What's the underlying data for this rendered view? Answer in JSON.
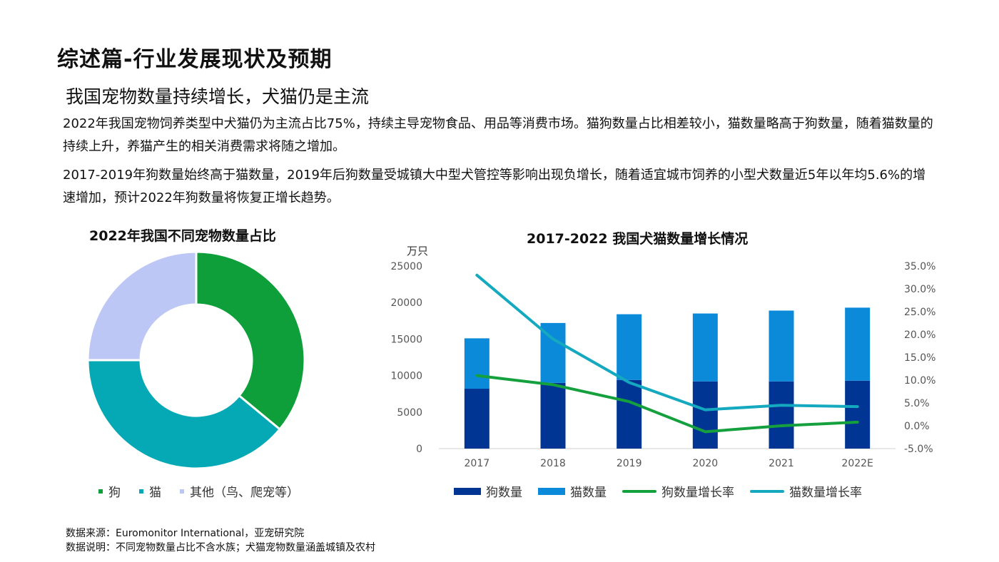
{
  "page": {
    "title": "综述篇-行业发展现状及预期",
    "subtitle": "我国宠物数量持续增长，犬猫仍是主流",
    "paragraph1": "2022年我国宠物饲养类型中犬猫仍为主流占比75%，持续主导宠物食品、用品等消费市场。猫狗数量占比相差较小，猫数量略高于狗数量，随着猫数量的持续上升，养猫产生的相关消费需求将随之增加。",
    "paragraph2": "2017-2019年狗数量始终高于猫数量，2019年后狗数量受城镇大中型犬管控等影响出现负增长，随着适宜城市饲养的小型犬数量近5年以年均5.6%的增速增加，预计2022年狗数量将恢复正增长趋势。",
    "source_line1": "数据来源：Euromonitor International，亚宠研究院",
    "source_line2": "数据说明：不同宠物数量占比不含水族；犬猫宠物数量涵盖城镇及农村"
  },
  "chart_data": [
    {
      "type": "pie",
      "title": "2022年我国不同宠物数量占比",
      "donut": true,
      "legend_position": "bottom",
      "slices": [
        {
          "label": "狗",
          "value": 36,
          "color": "#0E9F3A"
        },
        {
          "label": "猫",
          "value": 39,
          "color": "#04A9B5"
        },
        {
          "label": "其他（鸟、爬宠等）",
          "value": 25,
          "color": "#BDC7F5"
        }
      ]
    },
    {
      "type": "bar",
      "title": "2017-2022 我国犬猫数量增长情况",
      "stacked": true,
      "unit_label": "万只",
      "categories": [
        "2017",
        "2018",
        "2019",
        "2020",
        "2021",
        "2022E"
      ],
      "ylim": [
        0,
        25000
      ],
      "yticks": [
        "25000",
        "20000",
        "15000",
        "10000",
        "5000",
        "0"
      ],
      "y2lim": [
        -5.0,
        35.0
      ],
      "y2ticks": [
        "35.0%",
        "30.0%",
        "25.0%",
        "20.0%",
        "15.0%",
        "10.0%",
        "5.0%",
        "0.0%",
        "-5.0%"
      ],
      "legend_position": "bottom",
      "series": [
        {
          "name": "狗数量",
          "type": "bar",
          "color": "#003594",
          "values": [
            8200,
            9000,
            9400,
            9200,
            9200,
            9300
          ]
        },
        {
          "name": "猫数量",
          "type": "bar",
          "color": "#0B8AD9",
          "values": [
            6900,
            8200,
            9000,
            9300,
            9700,
            10000
          ]
        },
        {
          "name": "狗数量增长率",
          "type": "line",
          "axis": "right",
          "color": "#15A03E",
          "values": [
            11.0,
            9.0,
            5.3,
            -1.3,
            0.0,
            0.8
          ]
        },
        {
          "name": "猫数量增长率",
          "type": "line",
          "axis": "right",
          "color": "#14A9BE",
          "values": [
            33.0,
            19.0,
            9.5,
            3.5,
            4.5,
            4.2
          ]
        }
      ]
    }
  ]
}
